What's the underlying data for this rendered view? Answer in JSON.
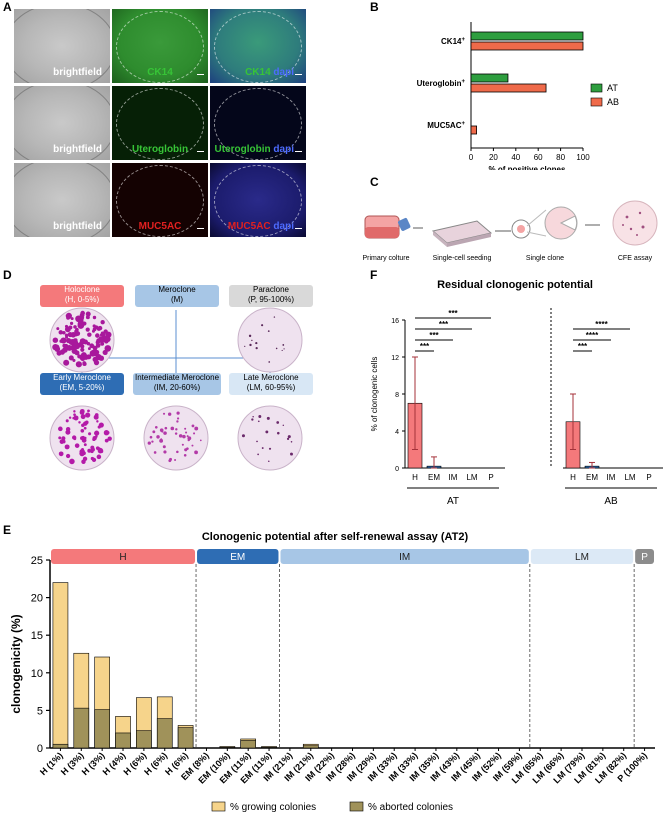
{
  "panels": {
    "a": "A",
    "b": "B",
    "c": "C",
    "d": "D",
    "e": "E",
    "f": "F"
  },
  "panel_a": {
    "rows": [
      {
        "bf": "brightfield",
        "ch": "CK14",
        "mergeA": "CK14",
        "mergeB": "dapi"
      },
      {
        "bf": "brightfield",
        "ch": "Uteroglobin",
        "mergeA": "Uteroglobin",
        "mergeB": "dapi"
      },
      {
        "bf": "brightfield",
        "ch": "MUC5AC",
        "mergeA": "MUC5AC",
        "mergeB": "dapi"
      }
    ],
    "colors": {
      "green": "#37c437",
      "red": "#e02020",
      "blue": "#4d6bff",
      "white": "#ffffff"
    }
  },
  "panel_c": {
    "steps": [
      "Primary colture",
      "Single-cell seeding",
      "Single clone",
      "CFE assay"
    ]
  },
  "panel_d": {
    "holo": {
      "name": "Holoclone",
      "range": "(H, 0-5%)",
      "color": "#f4797b"
    },
    "mero": {
      "name": "Meroclone",
      "range": "(M)",
      "color": "#a7c6e6"
    },
    "para": {
      "name": "Paraclone",
      "range": "(P, 95-100%)",
      "color": "#d9d9d9"
    },
    "em": {
      "name": "Early Meroclone",
      "range": "(EM, 5-20%)",
      "color": "#2e6db4"
    },
    "im": {
      "name": "Intermediate Meroclone",
      "range": "(IM, 20-60%)",
      "color": "#a7c6e6"
    },
    "lm": {
      "name": "Late Meroclone",
      "range": "(LM, 60-95%)",
      "color": "#d8e7f5"
    }
  },
  "chart_data": [
    {
      "type": "bar",
      "categories": [
        "CK14+",
        "Uteroglobin+",
        "MUC5AC+"
      ],
      "series": [
        {
          "name": "AT",
          "color": "#2e9e3f",
          "values": [
            100,
            33,
            0
          ]
        },
        {
          "name": "AB",
          "color": "#ef6a4a",
          "values": [
            100,
            67,
            5
          ]
        }
      ],
      "xlabel": "% of positive clones",
      "xlim": [
        0,
        100
      ],
      "xticks": [
        0,
        20,
        40,
        60,
        80,
        100
      ],
      "legend": "right"
    },
    {
      "type": "bar",
      "title": "Residual clonogenic potential",
      "ylabel": "% of clonogenic cells",
      "ylim": [
        0,
        16
      ],
      "yticks": [
        0,
        4,
        8,
        12,
        16
      ],
      "groups": [
        "AT",
        "AB"
      ],
      "categories": [
        "H",
        "EM",
        "IM",
        "LM",
        "P"
      ],
      "series": [
        {
          "name": "AT",
          "values": [
            7,
            0.2,
            0,
            0,
            0
          ],
          "err_low": [
            2,
            0
          ],
          "err_high": [
            12,
            1.2
          ]
        },
        {
          "name": "AB",
          "values": [
            5,
            0.2,
            0,
            0,
            0
          ],
          "err_low": [
            2,
            0
          ],
          "err_high": [
            8,
            0.6
          ]
        }
      ],
      "sig_AT": [
        {
          "from": "H",
          "to": "EM",
          "label": "***"
        },
        {
          "from": "H",
          "to": "IM",
          "label": "***"
        },
        {
          "from": "H",
          "to": "LM",
          "label": "***"
        },
        {
          "from": "H",
          "to": "P",
          "label": "***"
        }
      ],
      "sig_AB": [
        {
          "from": "H",
          "to": "EM",
          "label": "***"
        },
        {
          "from": "H",
          "to": "IM",
          "label": "****"
        },
        {
          "from": "H",
          "to": "LM",
          "label": "****"
        }
      ],
      "bar_color": "#f4797b"
    },
    {
      "type": "bar",
      "title": "Clonogenic potential after self-renewal assay (AT2)",
      "ylabel": "clonogenicity (%)",
      "ylim": [
        0,
        25
      ],
      "yticks": [
        0,
        5,
        10,
        15,
        20,
        25
      ],
      "categories": [
        "H (1%)",
        "H (3%)",
        "H (3%)",
        "H (4%)",
        "H (6%)",
        "H (6%)",
        "H (6%)",
        "EM (8%)",
        "EM (10%)",
        "EM (11%)",
        "EM (11%)",
        "IM (21%)",
        "IM (21%)",
        "IM (22%)",
        "IM (28%)",
        "IM (29%)",
        "IM (33%)",
        "IM (33%)",
        "IM (35%)",
        "IM (43%)",
        "IM (45%)",
        "IM (52%)",
        "IM (59%)",
        "LM (65%)",
        "LM (66%)",
        "LM (79%)",
        "LM (81%)",
        "LM (82%)",
        "P (100%)"
      ],
      "series": [
        {
          "name": "% growing colonies",
          "color": "#f6d48b",
          "values": [
            22,
            12.6,
            12.1,
            4.2,
            6.7,
            6.8,
            3,
            0,
            0.2,
            1.2,
            0.2,
            0,
            0.5,
            0,
            0,
            0,
            0,
            0,
            0,
            0,
            0,
            0,
            0,
            0,
            0,
            0,
            0,
            0,
            0
          ]
        },
        {
          "name": "% aborted colonies",
          "color": "#a0925a",
          "values": [
            0.5,
            5.3,
            5.1,
            2,
            2.3,
            3.9,
            2.7,
            0,
            0.1,
            1,
            0.1,
            0,
            0.3,
            0,
            0,
            0,
            0,
            0,
            0,
            0,
            0,
            0,
            0,
            0,
            0,
            0,
            0,
            0,
            0
          ]
        }
      ],
      "bands": [
        {
          "label": "H",
          "color": "#f4797b",
          "from": 0,
          "to": 6
        },
        {
          "label": "EM",
          "color": "#2e6db4",
          "from": 7,
          "to": 10
        },
        {
          "label": "IM",
          "color": "#a7c6e6",
          "from": 11,
          "to": 22
        },
        {
          "label": "LM",
          "color": "#dce9f6",
          "from": 23,
          "to": 27
        },
        {
          "label": "P",
          "color": "#8c8c8c",
          "from": 28,
          "to": 28
        }
      ],
      "legend": "bottom"
    }
  ]
}
